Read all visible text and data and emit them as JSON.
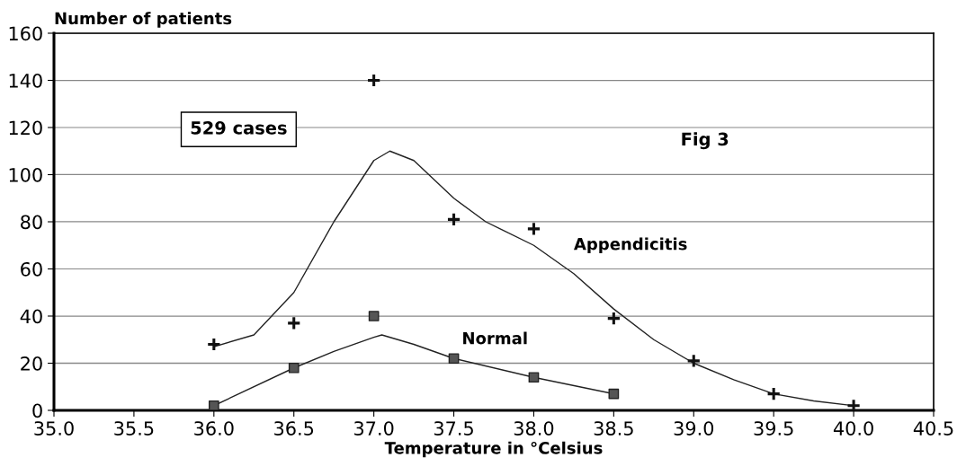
{
  "chart_data": {
    "type": "scatter",
    "xlabel": "Temperature in °Celsius",
    "ylabel": "Number of patients",
    "xlim": [
      35.0,
      40.5
    ],
    "xticks": [
      {
        "value": 35.0,
        "label": "35.0"
      },
      {
        "value": 35.5,
        "label": "35.5"
      },
      {
        "value": 36.0,
        "label": "36.0"
      },
      {
        "value": 36.5,
        "label": "36.5"
      },
      {
        "value": 37.0,
        "label": "37.0"
      },
      {
        "value": 37.5,
        "label": "37.5"
      },
      {
        "value": 38.0,
        "label": "38.0"
      },
      {
        "value": 38.5,
        "label": "38.5"
      },
      {
        "value": 39.0,
        "label": "39.0"
      },
      {
        "value": 39.5,
        "label": "39.5"
      },
      {
        "value": 40.0,
        "label": "40.0"
      },
      {
        "value": 40.5,
        "label": "40.5"
      }
    ],
    "ylim": [
      0,
      160
    ],
    "yticks": [
      0,
      20,
      40,
      60,
      80,
      100,
      120,
      140,
      160
    ],
    "grid": "y",
    "legend": false,
    "annotations": [
      "529 cases",
      "Fig 3"
    ],
    "series": [
      {
        "name": "Appendicitis",
        "marker": "cross",
        "color": "#111111",
        "x": [
          36.0,
          36.5,
          37.0,
          37.5,
          38.0,
          38.5,
          39.0,
          39.5,
          40.0
        ],
        "values": [
          28,
          37,
          140,
          81,
          77,
          39,
          21,
          7,
          2
        ]
      },
      {
        "name": "Normal",
        "marker": "square",
        "color": "#555555",
        "x": [
          36.0,
          36.5,
          37.0,
          37.5,
          38.0,
          38.5
        ],
        "values": [
          2,
          18,
          40,
          22,
          14,
          7
        ]
      },
      {
        "type": "line",
        "marker": "none",
        "color": "#222222",
        "x": [
          36.0,
          36.25,
          36.5,
          36.75,
          37.0,
          37.1,
          37.25,
          37.5,
          37.7,
          38.0,
          38.25,
          38.5,
          38.75,
          39.0,
          39.25,
          39.5,
          39.75,
          40.0
        ],
        "values": [
          27,
          32,
          50,
          80,
          106,
          110,
          106,
          90,
          80,
          70,
          58,
          43,
          30,
          20,
          13,
          7,
          4,
          2
        ]
      },
      {
        "type": "line",
        "marker": "none",
        "color": "#222222",
        "x": [
          36.0,
          36.5,
          36.75,
          37.0,
          37.05,
          37.25,
          37.5,
          38.0,
          38.5
        ],
        "values": [
          2,
          18,
          25,
          31,
          32,
          28,
          22,
          14,
          7
        ]
      }
    ]
  }
}
